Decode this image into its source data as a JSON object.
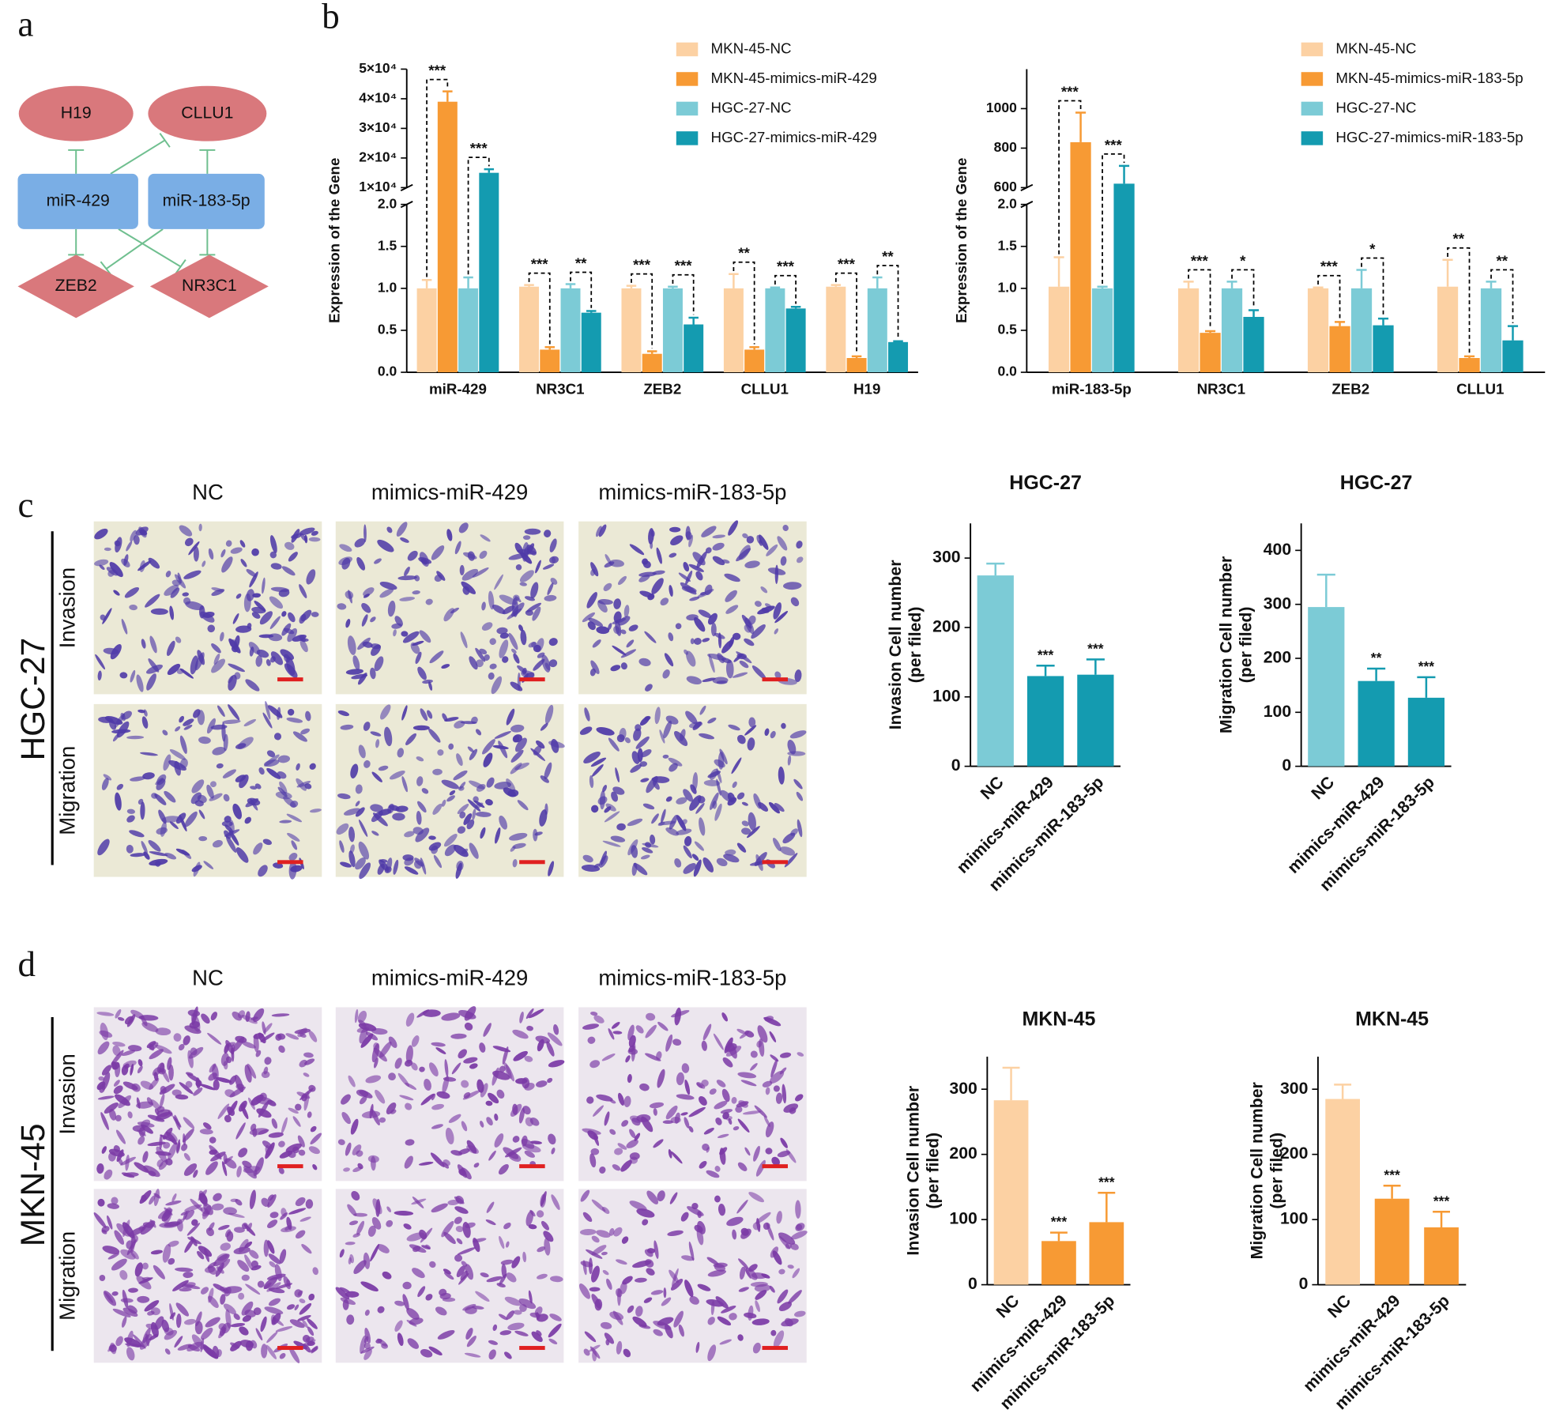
{
  "panel_labels": [
    "a",
    "b",
    "c",
    "d"
  ],
  "diagram": {
    "nodes": [
      "H19",
      "CLLU1",
      "miR-429",
      "miR-183-5p",
      "ZEB2",
      "NR3C1"
    ]
  },
  "image_grids": [
    {
      "row_title": "HGC-27",
      "columns": [
        "NC",
        "mimics-miR-429",
        "mimics-miR-183-5p"
      ],
      "rows": [
        "Invasion",
        "Migration"
      ]
    },
    {
      "row_title": "MKN-45",
      "columns": [
        "NC",
        "mimics-miR-429",
        "mimics-miR-183-5p"
      ],
      "rows": [
        "Invasion",
        "Migration"
      ]
    }
  ],
  "chart_data": [
    {
      "type": "bar",
      "ylabel": "Expression of the Gene",
      "categories": [
        "miR-429",
        "NR3C1",
        "ZEB2",
        "CLLU1",
        "H19"
      ],
      "series": [
        {
          "name": "MKN-45-NC",
          "color": "#fcd1a3",
          "values": [
            1.0,
            1.02,
            1.0,
            1.0,
            1.02
          ],
          "errors": [
            0.1,
            0.02,
            0.03,
            0.17,
            0.02
          ]
        },
        {
          "name": "MKN-45-mimics-miR-429",
          "color": "#f79a34",
          "values": [
            39000,
            0.27,
            0.22,
            0.27,
            0.17
          ],
          "errors": [
            3500,
            0.03,
            0.03,
            0.03,
            0.02
          ]
        },
        {
          "name": "HGC-27-NC",
          "color": "#7ccbd6",
          "values": [
            1.0,
            1.0,
            1.0,
            1.0,
            1.0
          ],
          "errors": [
            0.13,
            0.05,
            0.02,
            0.01,
            0.13
          ]
        },
        {
          "name": "HGC-27-mimics-miR-429",
          "color": "#149bb0",
          "values": [
            15000,
            0.71,
            0.57,
            0.76,
            0.36
          ],
          "errors": [
            1200,
            0.02,
            0.08,
            0.02,
            0.01
          ]
        }
      ],
      "significance": [
        [
          "***",
          "***"
        ],
        [
          "***",
          "**"
        ],
        [
          "***",
          "***"
        ],
        [
          "**",
          "***"
        ],
        [
          "***",
          "**"
        ]
      ],
      "ylim": [
        0,
        50000
      ],
      "axis_break": [
        2,
        10000
      ],
      "yticks": [
        {
          "value": 0,
          "label": "0.0"
        },
        {
          "value": 0.5,
          "label": "0.5"
        },
        {
          "value": 1,
          "label": "1.0"
        },
        {
          "value": 1.5,
          "label": "1.5"
        },
        {
          "value": 2,
          "label": "2.0"
        },
        {
          "value": 10000,
          "label": "1×10⁴"
        },
        {
          "value": 20000,
          "label": "2×10⁴"
        },
        {
          "value": 30000,
          "label": "3×10⁴"
        },
        {
          "value": 40000,
          "label": "4×10⁴"
        },
        {
          "value": 50000,
          "label": "5×10⁴"
        }
      ]
    },
    {
      "type": "bar",
      "ylabel": "Expression of the Gene",
      "categories": [
        "miR-183-5p",
        "NR3C1",
        "ZEB2",
        "CLLU1"
      ],
      "series": [
        {
          "name": "MKN-45-NC",
          "color": "#fcd1a3",
          "values": [
            1.02,
            1.0,
            1.0,
            1.02
          ],
          "errors": [
            0.35,
            0.08,
            0.01,
            0.32
          ]
        },
        {
          "name": "MKN-45-mimics-miR-183-5p",
          "color": "#f79a34",
          "values": [
            830,
            0.47,
            0.55,
            0.17
          ],
          "errors": [
            150,
            0.02,
            0.05,
            0.02
          ]
        },
        {
          "name": "HGC-27-NC",
          "color": "#7ccbd6",
          "values": [
            1.0,
            1.0,
            1.0,
            1.0
          ],
          "errors": [
            0.02,
            0.08,
            0.22,
            0.08
          ]
        },
        {
          "name": "HGC-27-mimics-miR-183-5p",
          "color": "#149bb0",
          "values": [
            620,
            0.66,
            0.56,
            0.38
          ],
          "errors": [
            90,
            0.08,
            0.08,
            0.17
          ]
        }
      ],
      "significance": [
        [
          "***",
          "***"
        ],
        [
          "***",
          "*"
        ],
        [
          "***",
          "*"
        ],
        [
          "**",
          "**"
        ]
      ],
      "ylim": [
        0,
        1200
      ],
      "axis_break": [
        2,
        600
      ],
      "yticks": [
        {
          "value": 0,
          "label": "0.0"
        },
        {
          "value": 0.5,
          "label": "0.5"
        },
        {
          "value": 1,
          "label": "1.0"
        },
        {
          "value": 1.5,
          "label": "1.5"
        },
        {
          "value": 2,
          "label": "2.0"
        },
        600,
        800,
        1000
      ]
    },
    {
      "type": "bar",
      "title": "HGC-27",
      "ylabel": "Invasion Cell number",
      "ylabel_sub": "(per filed)",
      "categories": [
        "NC",
        "mimics-miR-429",
        "mimics-miR-183-5p"
      ],
      "values": [
        275,
        130,
        132
      ],
      "errors": [
        17,
        15,
        22
      ],
      "colors": [
        "#7ccbd6",
        "#149bb0",
        "#149bb0"
      ],
      "significance": [
        null,
        "***",
        "***"
      ],
      "ylim": [
        0,
        350
      ],
      "yticks": [
        0,
        100,
        200,
        300
      ]
    },
    {
      "type": "bar",
      "title": "HGC-27",
      "ylabel": "Migration Cell number",
      "ylabel_sub": "(per filed)",
      "categories": [
        "NC",
        "mimics-miR-429",
        "mimics-miR-183-5p"
      ],
      "values": [
        295,
        158,
        127
      ],
      "errors": [
        60,
        23,
        38
      ],
      "colors": [
        "#7ccbd6",
        "#149bb0",
        "#149bb0"
      ],
      "significance": [
        null,
        "**",
        "***"
      ],
      "ylim": [
        0,
        450
      ],
      "yticks": [
        0,
        100,
        200,
        300,
        400
      ]
    },
    {
      "type": "bar",
      "title": "MKN-45",
      "ylabel": "Invasion Cell number",
      "ylabel_sub": "(per filed)",
      "categories": [
        "NC",
        "mimics-miR-429",
        "mimics-miR-183-5p"
      ],
      "values": [
        283,
        67,
        96
      ],
      "errors": [
        50,
        13,
        45
      ],
      "colors": [
        "#fcd1a3",
        "#f79a34",
        "#f79a34"
      ],
      "significance": [
        null,
        "***",
        "***"
      ],
      "ylim": [
        0,
        350
      ],
      "yticks": [
        0,
        100,
        200,
        300
      ]
    },
    {
      "type": "bar",
      "title": "MKN-45",
      "ylabel": "Migration Cell number",
      "ylabel_sub": "(per filed)",
      "categories": [
        "NC",
        "mimics-miR-429",
        "mimics-miR-183-5p"
      ],
      "values": [
        285,
        132,
        88
      ],
      "errors": [
        22,
        20,
        24
      ],
      "colors": [
        "#fcd1a3",
        "#f79a34",
        "#f79a34"
      ],
      "significance": [
        null,
        "***",
        "***"
      ],
      "ylim": [
        0,
        350
      ],
      "yticks": [
        0,
        100,
        200,
        300
      ]
    }
  ]
}
